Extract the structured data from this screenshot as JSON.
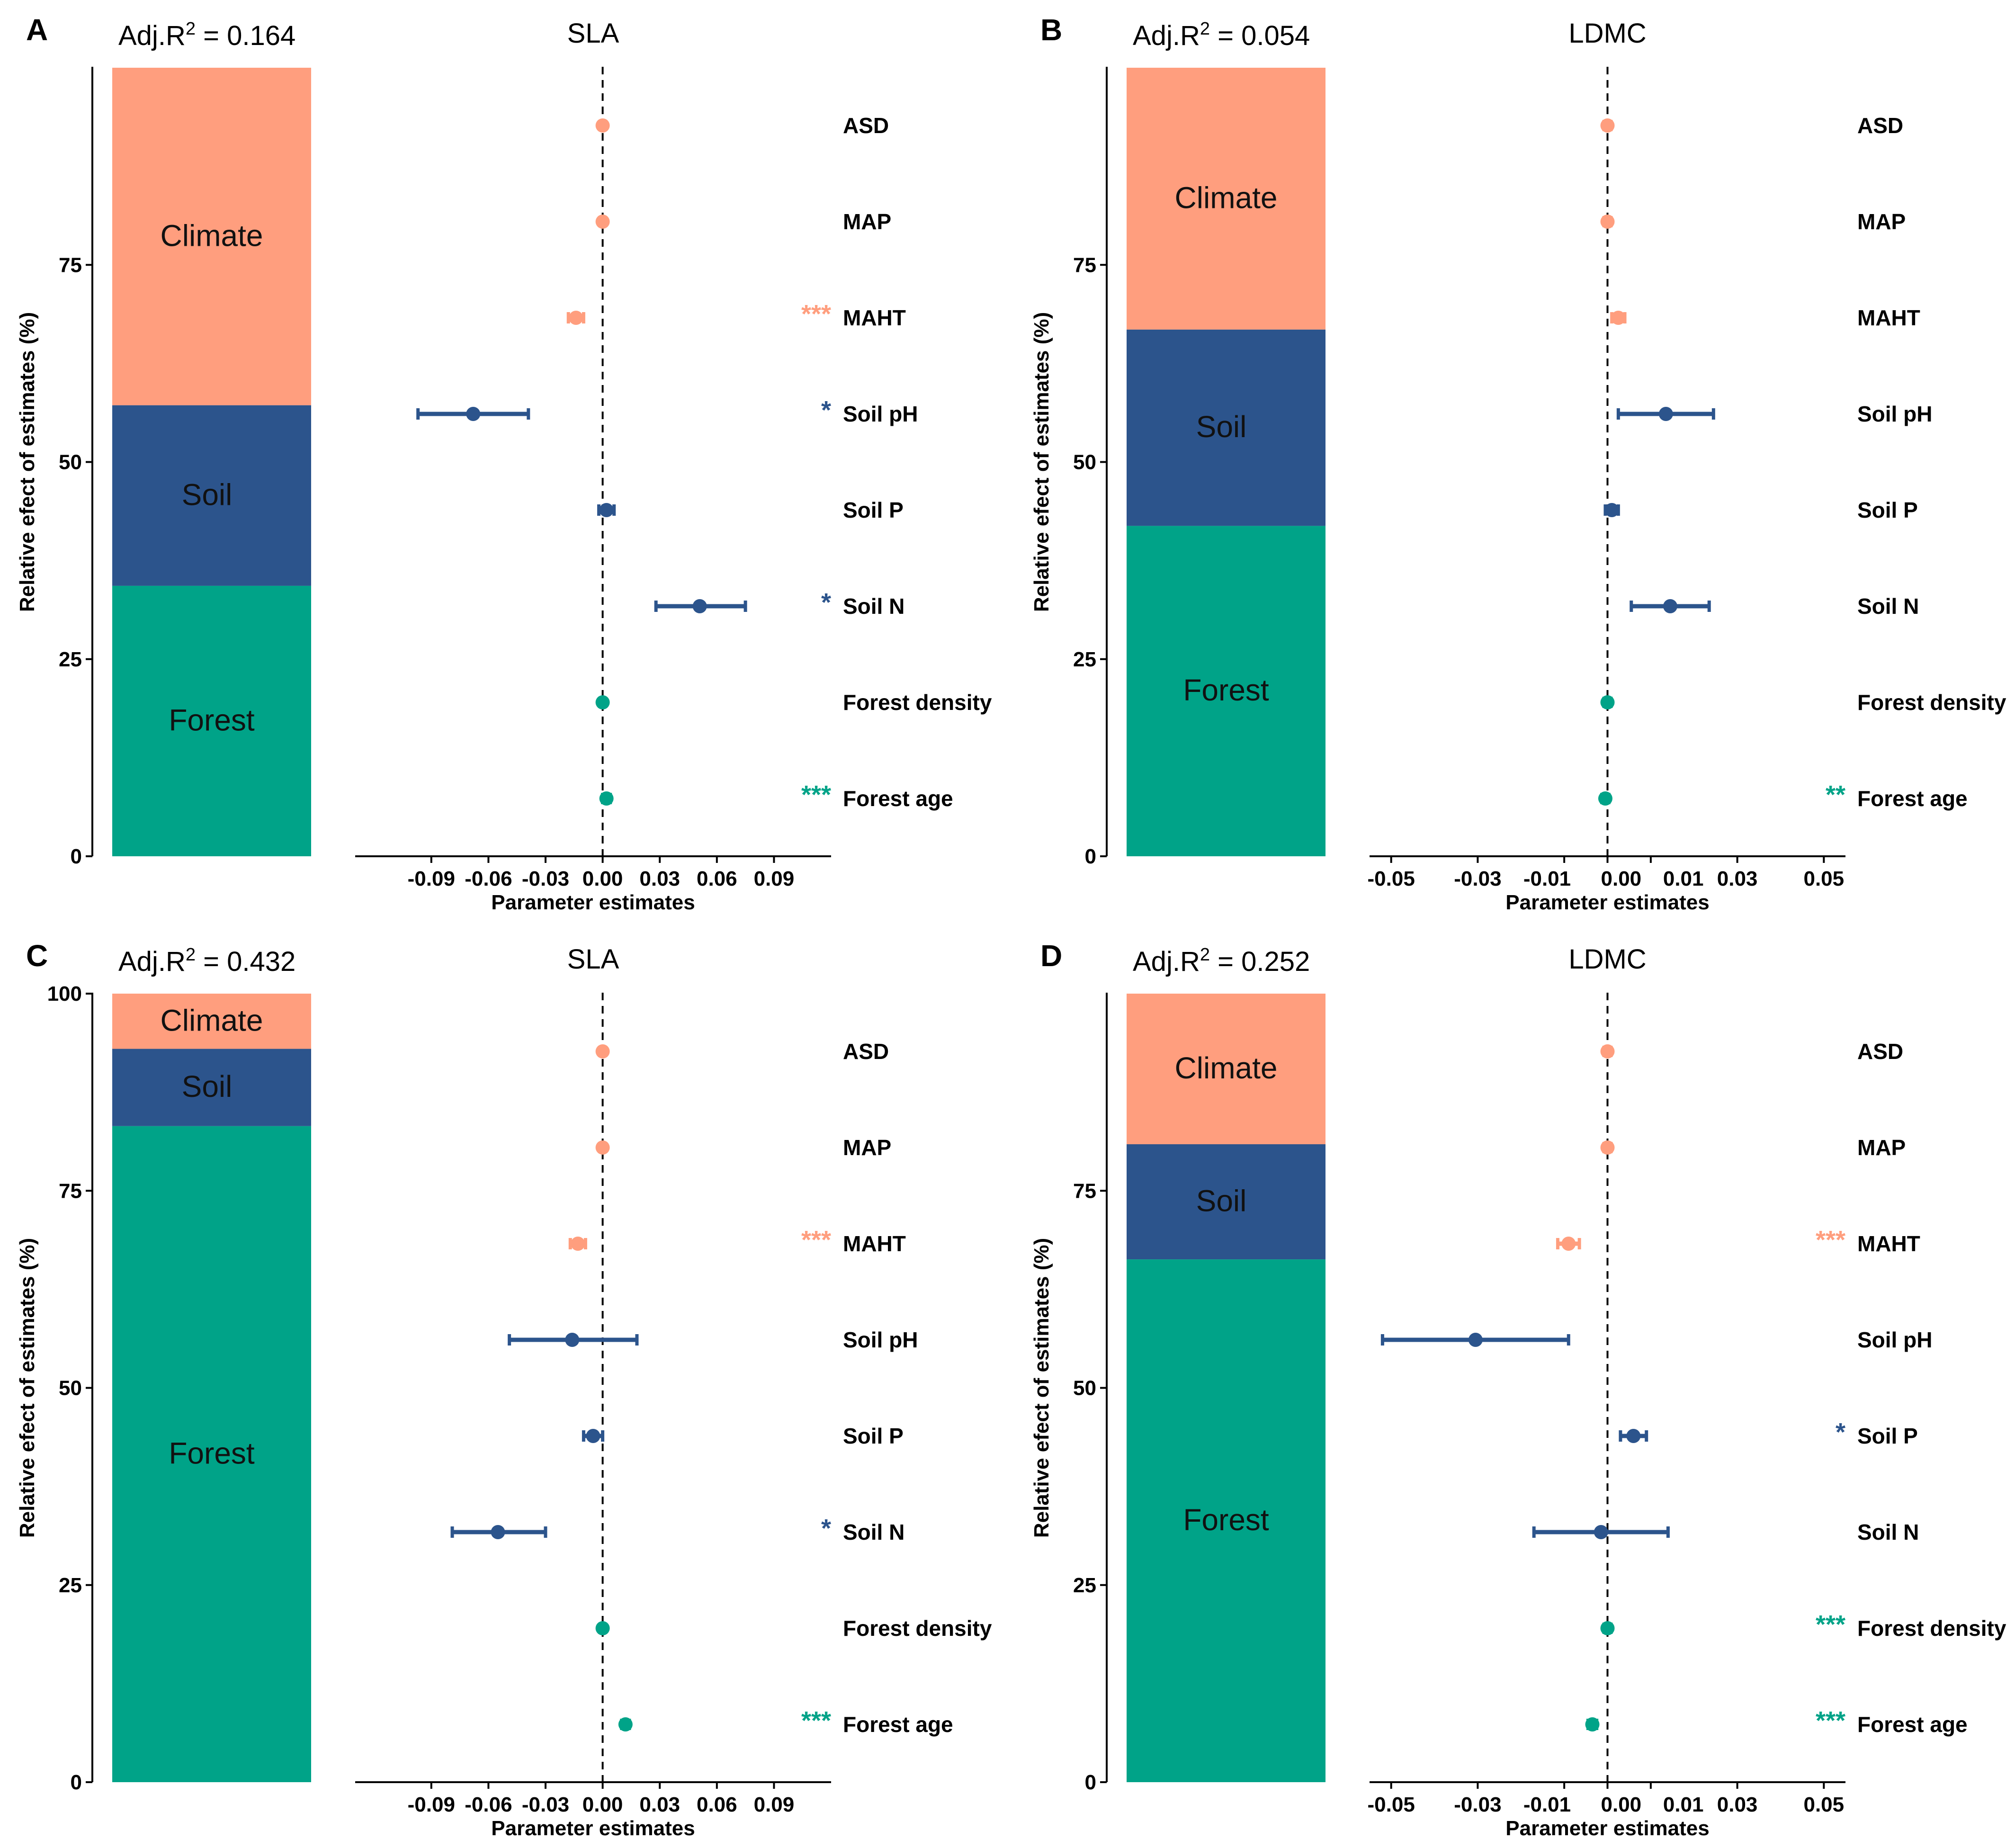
{
  "labels": {
    "yaxis_title": "Relative efect of estimates (%)",
    "xaxis_title": "Parameter estimates",
    "r2_prefix": "Adj.R"
  },
  "colors": {
    "climate": "#FF9E7E",
    "soil": "#2C548C",
    "forest": "#00A388",
    "axis": "#000000"
  },
  "chart_data": [
    {
      "panel": "A",
      "type": "bar",
      "title": "SLA",
      "adj_r2": "0.164",
      "ylim": [
        0,
        100
      ],
      "yticks": [
        0,
        25,
        50,
        75
      ],
      "stack": [
        {
          "name": "Forest",
          "value": 34.3
        },
        {
          "name": "Soil",
          "value": 22.9
        },
        {
          "name": "Climate",
          "value": 42.8
        }
      ],
      "xlim": [
        -0.13,
        0.12
      ],
      "xticks": [
        -0.09,
        -0.06,
        -0.03,
        0.0,
        0.03,
        0.06,
        0.09
      ],
      "xtick_labels": [
        "-0.09",
        "-0.06",
        "-0.03",
        "0.00",
        "0.03",
        "0.06",
        "0.09"
      ],
      "estimates": [
        {
          "name": "ASD",
          "group": "climate",
          "estimate": 0.0,
          "lo": -0.0015,
          "hi": 0.0015,
          "sig": ""
        },
        {
          "name": "MAP",
          "group": "climate",
          "estimate": 0.0,
          "lo": -0.0015,
          "hi": 0.0015,
          "sig": ""
        },
        {
          "name": "MAHT",
          "group": "climate",
          "estimate": -0.014,
          "lo": -0.018,
          "hi": -0.01,
          "sig": "***"
        },
        {
          "name": "Soil pH",
          "group": "soil",
          "estimate": -0.068,
          "lo": -0.097,
          "hi": -0.039,
          "sig": "*"
        },
        {
          "name": "Soil P",
          "group": "soil",
          "estimate": 0.002,
          "lo": -0.002,
          "hi": 0.006,
          "sig": ""
        },
        {
          "name": "Soil N",
          "group": "soil",
          "estimate": 0.051,
          "lo": 0.028,
          "hi": 0.075,
          "sig": "*"
        },
        {
          "name": "Forest density",
          "group": "forest",
          "estimate": 0.0,
          "lo": -0.0015,
          "hi": 0.0015,
          "sig": ""
        },
        {
          "name": "Forest age",
          "group": "forest",
          "estimate": 0.002,
          "lo": 0.0,
          "hi": 0.004,
          "sig": "***"
        }
      ]
    },
    {
      "panel": "B",
      "type": "bar",
      "title": "LDMC",
      "adj_r2": "0.054",
      "ylim": [
        0,
        100
      ],
      "yticks": [
        0,
        25,
        50,
        75
      ],
      "stack": [
        {
          "name": "Forest",
          "value": 41.9
        },
        {
          "name": "Soil",
          "value": 24.9
        },
        {
          "name": "Climate",
          "value": 33.2
        }
      ],
      "xlim": [
        -0.055,
        0.055
      ],
      "xticks": [
        -0.05,
        -0.03,
        -0.01,
        0.0,
        0.01,
        0.03,
        0.05
      ],
      "xtick_labels": [
        "-0.05",
        "-0.03",
        "-0.01",
        "0.00",
        "0.01",
        "0.03",
        "0.05"
      ],
      "estimates": [
        {
          "name": "ASD",
          "group": "climate",
          "estimate": 0.0,
          "lo": -0.0008,
          "hi": 0.0008,
          "sig": ""
        },
        {
          "name": "MAP",
          "group": "climate",
          "estimate": 0.0,
          "lo": -0.0008,
          "hi": 0.0008,
          "sig": ""
        },
        {
          "name": "MAHT",
          "group": "climate",
          "estimate": 0.0025,
          "lo": 0.001,
          "hi": 0.004,
          "sig": ""
        },
        {
          "name": "Soil pH",
          "group": "soil",
          "estimate": 0.0135,
          "lo": 0.0025,
          "hi": 0.0245,
          "sig": ""
        },
        {
          "name": "Soil P",
          "group": "soil",
          "estimate": 0.001,
          "lo": -0.0005,
          "hi": 0.0025,
          "sig": ""
        },
        {
          "name": "Soil N",
          "group": "soil",
          "estimate": 0.0145,
          "lo": 0.0055,
          "hi": 0.0235,
          "sig": ""
        },
        {
          "name": "Forest density",
          "group": "forest",
          "estimate": 0.0,
          "lo": -0.0008,
          "hi": 0.0008,
          "sig": ""
        },
        {
          "name": "Forest age",
          "group": "forest",
          "estimate": -0.0005,
          "lo": -0.0013,
          "hi": 0.0003,
          "sig": "**"
        }
      ]
    },
    {
      "panel": "C",
      "type": "bar",
      "title": "SLA",
      "adj_r2": "0.432",
      "ylim": [
        0,
        100
      ],
      "yticks": [
        0,
        25,
        50,
        75,
        100
      ],
      "stack": [
        {
          "name": "Forest",
          "value": 83.2
        },
        {
          "name": "Soil",
          "value": 9.8
        },
        {
          "name": "Climate",
          "value": 7.0
        }
      ],
      "xlim": [
        -0.13,
        0.12
      ],
      "xticks": [
        -0.09,
        -0.06,
        -0.03,
        0.0,
        0.03,
        0.06,
        0.09
      ],
      "xtick_labels": [
        "-0.09",
        "-0.06",
        "-0.03",
        "0.00",
        "0.03",
        "0.06",
        "0.09"
      ],
      "estimates": [
        {
          "name": "ASD",
          "group": "climate",
          "estimate": 0.0,
          "lo": -0.0015,
          "hi": 0.0015,
          "sig": ""
        },
        {
          "name": "MAP",
          "group": "climate",
          "estimate": 0.0,
          "lo": -0.0015,
          "hi": 0.0015,
          "sig": ""
        },
        {
          "name": "MAHT",
          "group": "climate",
          "estimate": -0.013,
          "lo": -0.017,
          "hi": -0.009,
          "sig": "***"
        },
        {
          "name": "Soil pH",
          "group": "soil",
          "estimate": -0.016,
          "lo": -0.049,
          "hi": 0.018,
          "sig": ""
        },
        {
          "name": "Soil P",
          "group": "soil",
          "estimate": -0.005,
          "lo": -0.01,
          "hi": 0.0,
          "sig": ""
        },
        {
          "name": "Soil N",
          "group": "soil",
          "estimate": -0.055,
          "lo": -0.079,
          "hi": -0.03,
          "sig": "*"
        },
        {
          "name": "Forest density",
          "group": "forest",
          "estimate": 0.0,
          "lo": -0.0015,
          "hi": 0.0015,
          "sig": ""
        },
        {
          "name": "Forest age",
          "group": "forest",
          "estimate": 0.012,
          "lo": 0.01,
          "hi": 0.014,
          "sig": "***"
        }
      ]
    },
    {
      "panel": "D",
      "type": "bar",
      "title": "LDMC",
      "adj_r2": "0.252",
      "ylim": [
        0,
        100
      ],
      "yticks": [
        0,
        25,
        50,
        75
      ],
      "stack": [
        {
          "name": "Forest",
          "value": 66.3
        },
        {
          "name": "Soil",
          "value": 14.6
        },
        {
          "name": "Climate",
          "value": 19.1
        }
      ],
      "xlim": [
        -0.055,
        0.055
      ],
      "xticks": [
        -0.05,
        -0.03,
        -0.01,
        0.0,
        0.01,
        0.03,
        0.05
      ],
      "xtick_labels": [
        "-0.05",
        "-0.03",
        "-0.01",
        "0.00",
        "0.01",
        "0.03",
        "0.05"
      ],
      "estimates": [
        {
          "name": "ASD",
          "group": "climate",
          "estimate": 0.0,
          "lo": -0.0008,
          "hi": 0.0008,
          "sig": ""
        },
        {
          "name": "MAP",
          "group": "climate",
          "estimate": 0.0,
          "lo": -0.0008,
          "hi": 0.0008,
          "sig": ""
        },
        {
          "name": "MAHT",
          "group": "climate",
          "estimate": -0.009,
          "lo": -0.0115,
          "hi": -0.0065,
          "sig": "***"
        },
        {
          "name": "Soil pH",
          "group": "soil",
          "estimate": -0.0305,
          "lo": -0.052,
          "hi": -0.009,
          "sig": ""
        },
        {
          "name": "Soil P",
          "group": "soil",
          "estimate": 0.006,
          "lo": 0.003,
          "hi": 0.009,
          "sig": "*"
        },
        {
          "name": "Soil N",
          "group": "soil",
          "estimate": -0.0015,
          "lo": -0.017,
          "hi": 0.014,
          "sig": ""
        },
        {
          "name": "Forest density",
          "group": "forest",
          "estimate": 0.0,
          "lo": -0.0008,
          "hi": 0.0008,
          "sig": "***"
        },
        {
          "name": "Forest age",
          "group": "forest",
          "estimate": -0.0035,
          "lo": -0.0045,
          "hi": -0.0025,
          "sig": "***"
        }
      ]
    }
  ]
}
